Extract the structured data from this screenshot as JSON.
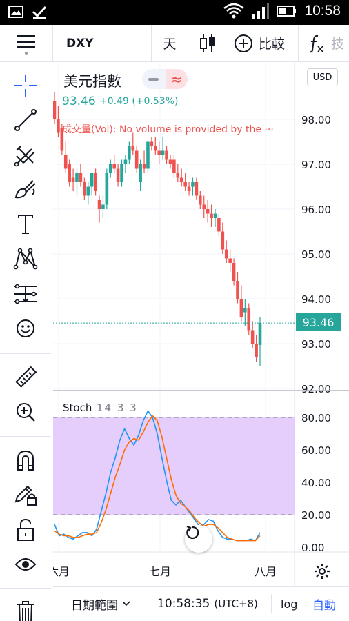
{
  "status_bar": {
    "time": "10:58",
    "icons": [
      "image-icon",
      "check-icon",
      "wifi-icon",
      "signal-icon",
      "battery-icon"
    ]
  },
  "toolbar": {
    "symbol": "DXY",
    "interval": "天",
    "chart_type_icon": "candlestick-icon",
    "compare_label": "比較",
    "indicators_label": "技",
    "icons": [
      "menu-icon",
      "candlestick-icon",
      "add-circle-icon",
      "function-icon"
    ]
  },
  "left_tools": {
    "icons": [
      "crosshair-icon",
      "trend-line-icon",
      "fib-pitchfork-icon",
      "brush-icon",
      "text-icon",
      "pattern-icon",
      "prediction-icon",
      "emoji-icon",
      "ruler-icon",
      "zoom-in-icon",
      "magnet-icon",
      "lock-drawing-icon",
      "unlock-icon",
      "eye-icon",
      "trash-icon"
    ]
  },
  "legend": {
    "title": "美元指數",
    "price": "93.46",
    "change": "+0.49 (+0.53%)",
    "volume_note": "成交量(Vol): No volume is provided by the ···"
  },
  "price_axis": {
    "currency": "USD",
    "last_price": "93.46",
    "ticks": [
      "98.00",
      "97.00",
      "96.00",
      "95.00",
      "94.00",
      "93.00",
      "92.00"
    ]
  },
  "stoch": {
    "label": "Stoch",
    "params": "14 3 3",
    "axis_ticks": [
      "80.00",
      "60.00",
      "40.00",
      "20.00",
      "0.00"
    ]
  },
  "time_axis": {
    "labels": [
      "六月",
      "七月",
      "八月"
    ]
  },
  "bottom_bar": {
    "date_range": "日期範圍",
    "time": "10:58:35",
    "timezone": "(UTC+8)",
    "log": "log",
    "auto": "自動"
  },
  "colors": {
    "up": "#26a69a",
    "down": "#ef5350",
    "accent": "#2962ff",
    "stoch_k": "#2196f3",
    "stoch_d": "#ff6d00",
    "stoch_band": "#e1c4fb"
  },
  "chart_data": [
    {
      "type": "candlestick",
      "title": "美元指數",
      "ylim": [
        92.0,
        98.9
      ],
      "y_ticks": [
        98.0,
        97.0,
        96.0,
        95.0,
        94.0,
        93.0,
        92.0
      ],
      "last_price": 93.46,
      "x_labels": [
        "六月",
        "七月",
        "八月"
      ],
      "ohlc": [
        [
          98.4,
          98.6,
          97.9,
          98.0
        ],
        [
          98.0,
          98.3,
          97.6,
          97.7
        ],
        [
          97.8,
          97.9,
          97.2,
          97.3
        ],
        [
          97.2,
          97.5,
          96.8,
          96.9
        ],
        [
          97.0,
          97.1,
          96.5,
          96.6
        ],
        [
          96.7,
          96.9,
          96.4,
          96.6
        ],
        [
          96.6,
          96.9,
          96.3,
          96.8
        ],
        [
          96.8,
          97.0,
          96.5,
          96.6
        ],
        [
          96.6,
          96.7,
          96.2,
          96.3
        ],
        [
          96.3,
          96.6,
          96.1,
          96.5
        ],
        [
          96.5,
          96.8,
          96.3,
          96.8
        ],
        [
          96.8,
          96.9,
          96.3,
          96.4
        ],
        [
          96.2,
          96.3,
          95.7,
          96.0
        ],
        [
          96.0,
          96.3,
          95.8,
          96.1
        ],
        [
          96.1,
          96.9,
          96.0,
          96.8
        ],
        [
          96.8,
          97.1,
          96.7,
          97.0
        ],
        [
          97.0,
          97.2,
          96.8,
          96.9
        ],
        [
          96.9,
          97.0,
          96.5,
          96.6
        ],
        [
          96.6,
          97.1,
          96.5,
          97.0
        ],
        [
          97.0,
          97.2,
          96.8,
          97.1
        ],
        [
          97.1,
          97.5,
          97.0,
          97.4
        ],
        [
          97.4,
          97.7,
          97.2,
          97.3
        ],
        [
          97.3,
          97.4,
          96.8,
          96.9
        ],
        [
          96.6,
          97.1,
          96.4,
          97.0
        ],
        [
          97.0,
          97.3,
          96.8,
          96.9
        ],
        [
          96.9,
          97.5,
          96.8,
          97.5
        ],
        [
          97.5,
          97.6,
          97.3,
          97.4
        ],
        [
          97.4,
          97.6,
          97.2,
          97.3
        ],
        [
          97.3,
          97.5,
          97.0,
          97.2
        ],
        [
          97.2,
          97.6,
          97.1,
          97.3
        ],
        [
          97.3,
          97.4,
          97.0,
          97.1
        ],
        [
          97.1,
          97.2,
          96.9,
          97.0
        ],
        [
          97.1,
          97.2,
          96.7,
          96.8
        ],
        [
          96.8,
          97.0,
          96.6,
          96.7
        ],
        [
          96.7,
          96.9,
          96.5,
          96.6
        ],
        [
          96.6,
          96.8,
          96.4,
          96.5
        ],
        [
          96.5,
          96.6,
          96.3,
          96.4
        ],
        [
          96.5,
          96.7,
          96.3,
          96.6
        ],
        [
          96.6,
          96.7,
          96.2,
          96.3
        ],
        [
          96.3,
          96.4,
          96.0,
          96.1
        ],
        [
          96.1,
          96.3,
          95.8,
          96.0
        ],
        [
          96.0,
          96.2,
          95.7,
          95.9
        ],
        [
          95.9,
          96.1,
          95.6,
          95.8
        ],
        [
          95.8,
          96.0,
          95.6,
          95.9
        ],
        [
          95.8,
          95.9,
          95.4,
          95.5
        ],
        [
          95.5,
          95.7,
          95.0,
          95.1
        ],
        [
          95.1,
          95.3,
          94.8,
          94.9
        ],
        [
          94.9,
          95.1,
          94.6,
          94.8
        ],
        [
          94.8,
          94.9,
          94.3,
          94.4
        ],
        [
          94.4,
          94.6,
          93.9,
          94.0
        ],
        [
          94.0,
          94.3,
          93.5,
          93.6
        ],
        [
          93.7,
          94.0,
          93.4,
          93.8
        ],
        [
          93.8,
          93.9,
          93.2,
          93.3
        ],
        [
          93.3,
          93.5,
          92.9,
          93.0
        ],
        [
          93.0,
          93.2,
          92.6,
          92.7
        ],
        [
          92.97,
          93.6,
          92.5,
          93.46
        ]
      ]
    },
    {
      "type": "line",
      "title": "Stoch 14 3 3",
      "ylim": [
        -5,
        90
      ],
      "y_ticks": [
        80,
        60,
        40,
        20,
        0
      ],
      "band": [
        20,
        80
      ],
      "series": [
        {
          "name": "%K",
          "values": [
            14,
            7,
            8,
            6,
            5,
            7,
            9,
            9,
            7,
            11,
            22,
            33,
            46,
            55,
            66,
            73,
            67,
            63,
            69,
            78,
            84,
            80,
            70,
            55,
            41,
            29,
            26,
            29,
            25,
            21,
            17,
            13,
            14,
            17,
            16,
            10,
            6,
            5,
            5,
            4,
            4,
            4,
            5,
            4,
            9
          ]
        },
        {
          "name": "%D",
          "values": [
            10,
            8,
            7,
            7,
            6,
            6,
            7,
            8,
            8,
            9,
            15,
            23,
            33,
            43,
            51,
            60,
            65,
            67,
            66,
            71,
            77,
            81,
            78,
            68,
            55,
            42,
            32,
            27,
            25,
            22,
            18,
            15,
            13,
            14,
            14,
            12,
            9,
            6,
            5,
            4,
            4,
            4,
            4,
            4,
            7
          ]
        }
      ]
    }
  ]
}
